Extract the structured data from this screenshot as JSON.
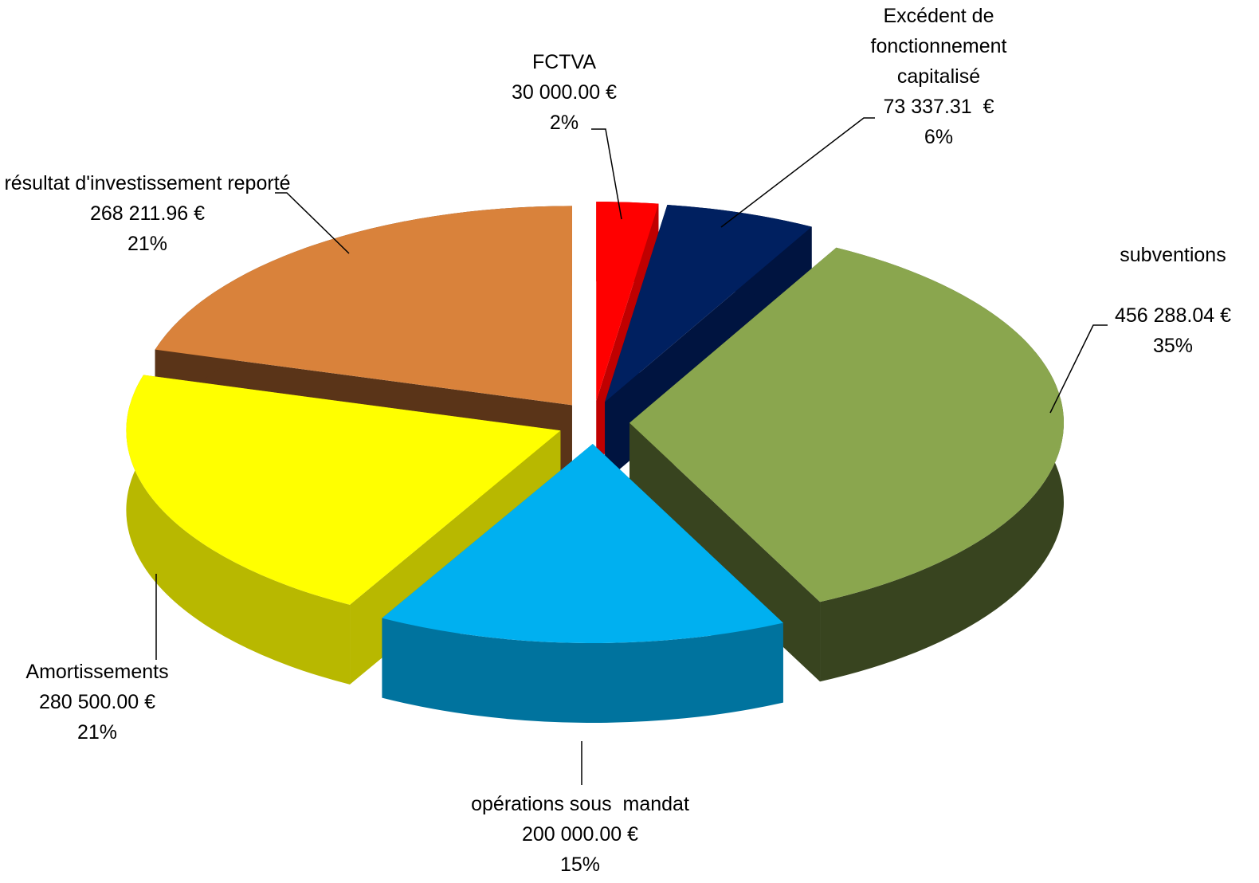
{
  "chart_data": {
    "type": "pie3d",
    "categories": [
      "FCTVA",
      "Excédent de fonctionnement capitalisé",
      "subventions",
      "opérations sous  mandat",
      "Amortissements",
      "résultat d'investissement reporté"
    ],
    "values": [
      30000.0,
      73337.31,
      456288.04,
      200000.0,
      280500.0,
      268211.96
    ],
    "value_labels": [
      "30 000.00 €",
      "73 337.31  €",
      "456 288.04 €",
      "200 000.00 €",
      "280 500.00 €",
      "268 211.96 €"
    ],
    "percent_labels": [
      "2%",
      "6%",
      "35%",
      "15%",
      "21%",
      "21%"
    ],
    "colors": [
      "#ff0000",
      "#002060",
      "#8aa64e",
      "#00b0f0",
      "#ffff00",
      "#d9823b"
    ],
    "side_colors": [
      "#c00000",
      "#001440",
      "#38441f",
      "#00739e",
      "#b8b800",
      "#5a3418"
    ]
  }
}
